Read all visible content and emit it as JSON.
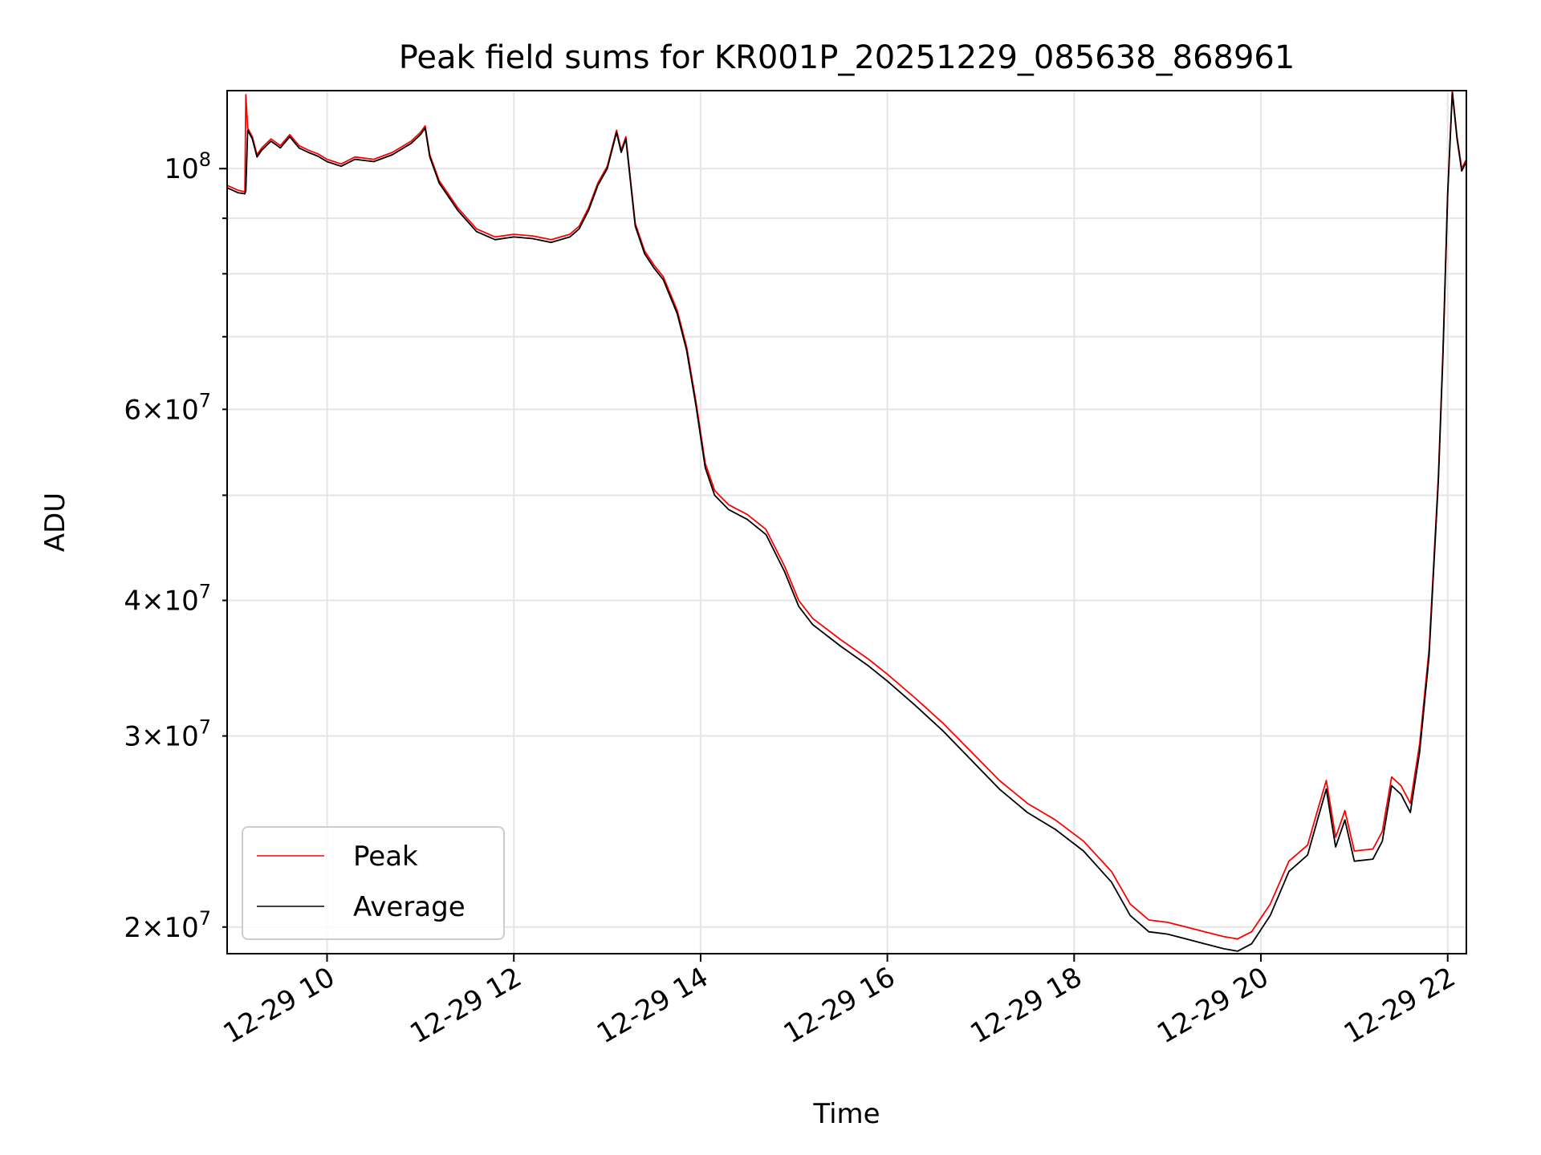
{
  "chart_data": {
    "type": "line",
    "title": "Peak field sums for KR001P_20251229_085638_868961",
    "xlabel": "Time",
    "ylabel": "ADU",
    "yscale": "log",
    "xlim": [
      8.93,
      22.2
    ],
    "ylim": [
      18900000,
      118000000
    ],
    "grid": true,
    "x_ticks": [
      {
        "value": 10,
        "label": "12-29 10"
      },
      {
        "value": 12,
        "label": "12-29 12"
      },
      {
        "value": 14,
        "label": "12-29 14"
      },
      {
        "value": 16,
        "label": "12-29 16"
      },
      {
        "value": 18,
        "label": "12-29 18"
      },
      {
        "value": 20,
        "label": "12-29 20"
      },
      {
        "value": 22,
        "label": "12-29 22"
      }
    ],
    "y_major_ticks": [
      {
        "value": 100000000,
        "mantissa": "",
        "exponent": "8"
      }
    ],
    "y_minor_labeled_ticks": [
      {
        "value": 20000000,
        "mantissa": "2",
        "exponent": "7"
      },
      {
        "value": 30000000,
        "mantissa": "3",
        "exponent": "7"
      },
      {
        "value": 40000000,
        "mantissa": "4",
        "exponent": "7"
      },
      {
        "value": 60000000,
        "mantissa": "6",
        "exponent": "7"
      }
    ],
    "y_minor_unlabeled_ticks": [
      50000000,
      70000000,
      80000000,
      90000000
    ],
    "legend": {
      "position": "lower-left",
      "entries": [
        {
          "label": "Peak",
          "color": "#ff0000"
        },
        {
          "label": "Average",
          "color": "#000000"
        }
      ]
    },
    "x": [
      8.93,
      9.05,
      9.12,
      9.13,
      9.15,
      9.2,
      9.25,
      9.3,
      9.4,
      9.5,
      9.6,
      9.7,
      9.8,
      9.9,
      10.0,
      10.15,
      10.3,
      10.5,
      10.7,
      10.9,
      11.0,
      11.05,
      11.1,
      11.2,
      11.4,
      11.6,
      11.8,
      12.0,
      12.2,
      12.4,
      12.6,
      12.7,
      12.8,
      12.9,
      13.0,
      13.1,
      13.15,
      13.2,
      13.3,
      13.4,
      13.5,
      13.6,
      13.75,
      13.85,
      13.95,
      14.05,
      14.15,
      14.3,
      14.5,
      14.7,
      14.9,
      15.05,
      15.2,
      15.5,
      15.8,
      16.0,
      16.3,
      16.6,
      16.9,
      17.2,
      17.5,
      17.8,
      18.1,
      18.4,
      18.6,
      18.8,
      19.0,
      19.2,
      19.4,
      19.6,
      19.75,
      19.9,
      20.1,
      20.3,
      20.5,
      20.6,
      20.7,
      20.8,
      20.9,
      21.0,
      21.2,
      21.3,
      21.4,
      21.5,
      21.6,
      21.7,
      21.8,
      21.9,
      21.95,
      22.0,
      22.05,
      22.1,
      22.15,
      22.2
    ],
    "series": [
      {
        "name": "Peak",
        "values": [
          96500000,
          95500000,
          95200000,
          117000000,
          109000000,
          107000000,
          103000000,
          104500000,
          106500000,
          105000000,
          107500000,
          105000000,
          104000000,
          103200000,
          102000000,
          101000000,
          102500000,
          102000000,
          103500000,
          106000000,
          108000000,
          109500000,
          103000000,
          97500000,
          92000000,
          88000000,
          86500000,
          87000000,
          86700000,
          86000000,
          87000000,
          88500000,
          92000000,
          97000000,
          100500000,
          108500000,
          104000000,
          107000000,
          89000000,
          84000000,
          81500000,
          79500000,
          74000000,
          68500000,
          61000000,
          53500000,
          50500000,
          49000000,
          48000000,
          46500000,
          43000000,
          40000000,
          38500000,
          36800000,
          35300000,
          34200000,
          32500000,
          30800000,
          29000000,
          27300000,
          26000000,
          25100000,
          24000000,
          22500000,
          21000000,
          20300000,
          20200000,
          20000000,
          19800000,
          19600000,
          19500000,
          19800000,
          21000000,
          23000000,
          23800000,
          25500000,
          27300000,
          24200000,
          25600000,
          23500000,
          23600000,
          24500000,
          27500000,
          27000000,
          26000000,
          29500000,
          36000000,
          52000000,
          68000000,
          95000000,
          118000000,
          107000000,
          100000000,
          102000000
        ]
      },
      {
        "name": "Average",
        "values": [
          96000000,
          95000000,
          94800000,
          95500000,
          108500000,
          106500000,
          102500000,
          104000000,
          106000000,
          104500000,
          107000000,
          104500000,
          103500000,
          102700000,
          101500000,
          100500000,
          102000000,
          101500000,
          103000000,
          105500000,
          107500000,
          109000000,
          102500000,
          97000000,
          91500000,
          87500000,
          86000000,
          86500000,
          86200000,
          85500000,
          86500000,
          88000000,
          91500000,
          96500000,
          100000000,
          108000000,
          103500000,
          106500000,
          88500000,
          83500000,
          81000000,
          79000000,
          73500000,
          68000000,
          60500000,
          53000000,
          50000000,
          48500000,
          47500000,
          46000000,
          42500000,
          39500000,
          38000000,
          36300000,
          34800000,
          33700000,
          32000000,
          30300000,
          28500000,
          26800000,
          25500000,
          24600000,
          23500000,
          22000000,
          20500000,
          19800000,
          19700000,
          19500000,
          19300000,
          19100000,
          19000000,
          19300000,
          20500000,
          22500000,
          23300000,
          25000000,
          26800000,
          23700000,
          25100000,
          23000000,
          23100000,
          24000000,
          27000000,
          26500000,
          25500000,
          29000000,
          35500000,
          51500000,
          67500000,
          94500000,
          117500000,
          106500000,
          99500000,
          101500000
        ]
      }
    ]
  }
}
